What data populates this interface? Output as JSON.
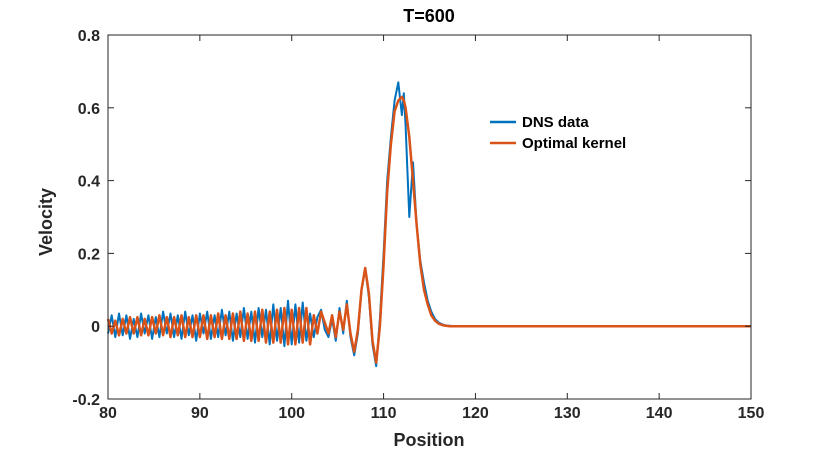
{
  "chart_data": {
    "type": "line",
    "title": "T=600",
    "xlabel": "Position",
    "ylabel": "Velocity",
    "xlim": [
      80,
      150
    ],
    "ylim": [
      -0.2,
      0.8
    ],
    "xticks": [
      80,
      90,
      100,
      110,
      120,
      130,
      140,
      150
    ],
    "yticks": [
      -0.2,
      0,
      0.2,
      0.4,
      0.6,
      0.8
    ],
    "xtick_labels": [
      "80",
      "90",
      "100",
      "110",
      "120",
      "130",
      "140",
      "150"
    ],
    "ytick_labels": [
      "-0.2",
      "0",
      "0.2",
      "0.4",
      "0.6",
      "0.8"
    ],
    "grid": false,
    "legend_position": "top-right",
    "series": [
      {
        "name": "DNS data",
        "color": "#0072BD",
        "x": [
          80.0,
          80.4,
          80.8,
          81.2,
          81.6,
          82.0,
          82.4,
          82.8,
          83.2,
          83.6,
          84.0,
          84.4,
          84.8,
          85.2,
          85.6,
          86.0,
          86.4,
          86.8,
          87.2,
          87.6,
          88.0,
          88.4,
          88.8,
          89.2,
          89.6,
          90.0,
          90.4,
          90.8,
          91.2,
          91.6,
          92.0,
          92.4,
          92.8,
          93.2,
          93.6,
          94.0,
          94.4,
          94.8,
          95.2,
          95.6,
          96.0,
          96.4,
          96.8,
          97.2,
          97.6,
          98.0,
          98.4,
          98.8,
          99.2,
          99.6,
          100.0,
          100.4,
          100.8,
          101.2,
          101.6,
          102.0,
          102.4,
          102.8,
          103.2,
          103.6,
          104.0,
          104.4,
          104.8,
          105.2,
          105.6,
          106.0,
          106.4,
          106.8,
          107.2,
          107.6,
          108.0,
          108.4,
          108.8,
          109.2,
          109.6,
          110.0,
          110.4,
          110.8,
          111.2,
          111.6,
          112.0,
          112.2,
          112.4,
          112.8,
          113.2,
          113.6,
          114.0,
          114.4,
          114.8,
          115.2,
          115.6,
          116.0,
          116.4,
          116.8,
          117.2,
          118.0,
          120.0,
          125.0,
          130.0,
          135.0,
          140.0,
          145.0,
          150.0
        ],
        "y": [
          -0.02,
          0.03,
          -0.03,
          0.035,
          -0.025,
          0.03,
          -0.035,
          0.02,
          -0.03,
          0.035,
          -0.02,
          0.03,
          -0.035,
          0.025,
          -0.03,
          0.04,
          -0.02,
          0.035,
          -0.03,
          0.03,
          -0.035,
          0.04,
          -0.025,
          0.03,
          -0.04,
          0.035,
          -0.02,
          0.04,
          -0.035,
          0.03,
          -0.03,
          0.045,
          -0.025,
          0.04,
          -0.04,
          0.035,
          -0.03,
          0.05,
          -0.035,
          0.04,
          -0.045,
          0.05,
          -0.03,
          0.045,
          -0.05,
          0.06,
          -0.04,
          0.05,
          -0.055,
          0.07,
          -0.05,
          0.06,
          -0.045,
          0.065,
          -0.04,
          0.035,
          -0.03,
          0.025,
          0.045,
          -0.01,
          -0.03,
          0.02,
          -0.04,
          0.05,
          -0.02,
          0.07,
          -0.03,
          -0.08,
          -0.02,
          0.1,
          0.16,
          0.08,
          -0.05,
          -0.11,
          0.02,
          0.2,
          0.4,
          0.52,
          0.62,
          0.67,
          0.58,
          0.64,
          0.55,
          0.3,
          0.45,
          0.28,
          0.18,
          0.12,
          0.07,
          0.04,
          0.02,
          0.01,
          0.005,
          0.002,
          0.001,
          0.0,
          0.0,
          0.0,
          0.0,
          0.0,
          0.0,
          0.0,
          0.0
        ]
      },
      {
        "name": "Optimal kernel",
        "color": "#D95319",
        "x": [
          80.0,
          80.4,
          80.8,
          81.2,
          81.6,
          82.0,
          82.4,
          82.8,
          83.2,
          83.6,
          84.0,
          84.4,
          84.8,
          85.2,
          85.6,
          86.0,
          86.4,
          86.8,
          87.2,
          87.6,
          88.0,
          88.4,
          88.8,
          89.2,
          89.6,
          90.0,
          90.4,
          90.8,
          91.2,
          91.6,
          92.0,
          92.4,
          92.8,
          93.2,
          93.6,
          94.0,
          94.4,
          94.8,
          95.2,
          95.6,
          96.0,
          96.4,
          96.8,
          97.2,
          97.6,
          98.0,
          98.4,
          98.8,
          99.2,
          99.6,
          100.0,
          100.4,
          100.8,
          101.2,
          101.6,
          102.0,
          102.4,
          102.8,
          103.2,
          103.6,
          104.0,
          104.4,
          104.8,
          105.2,
          105.6,
          106.0,
          106.4,
          106.8,
          107.2,
          107.6,
          108.0,
          108.4,
          108.8,
          109.2,
          109.6,
          110.0,
          110.4,
          110.8,
          111.2,
          111.6,
          112.0,
          112.2,
          112.4,
          112.8,
          113.2,
          113.6,
          114.0,
          114.4,
          114.8,
          115.2,
          115.6,
          116.0,
          116.4,
          116.8,
          117.2,
          118.0,
          120.0,
          125.0,
          130.0,
          135.0,
          140.0,
          145.0,
          150.0
        ],
        "y": [
          0.02,
          -0.02,
          0.015,
          -0.025,
          0.02,
          -0.02,
          0.025,
          -0.02,
          0.025,
          -0.025,
          0.02,
          -0.025,
          0.025,
          -0.02,
          0.03,
          -0.025,
          0.025,
          -0.03,
          0.025,
          -0.025,
          0.03,
          -0.03,
          0.025,
          -0.03,
          0.03,
          -0.03,
          0.03,
          -0.035,
          0.03,
          -0.03,
          0.035,
          -0.035,
          0.03,
          -0.035,
          0.035,
          -0.035,
          0.04,
          -0.04,
          0.035,
          -0.04,
          0.04,
          -0.04,
          0.045,
          -0.045,
          0.04,
          -0.045,
          0.045,
          -0.045,
          0.05,
          -0.05,
          0.045,
          -0.05,
          0.05,
          -0.045,
          0.05,
          -0.05,
          0.03,
          -0.02,
          0.04,
          0.01,
          -0.02,
          0.03,
          -0.03,
          0.04,
          -0.01,
          0.06,
          -0.02,
          -0.07,
          -0.01,
          0.1,
          0.16,
          0.09,
          -0.04,
          -0.1,
          0.0,
          0.17,
          0.37,
          0.5,
          0.59,
          0.62,
          0.63,
          0.62,
          0.6,
          0.52,
          0.4,
          0.28,
          0.17,
          0.1,
          0.06,
          0.03,
          0.015,
          0.007,
          0.003,
          0.001,
          0.0,
          0.0,
          0.0,
          0.0,
          0.0,
          0.0,
          0.0,
          0.0,
          0.0
        ]
      }
    ]
  }
}
